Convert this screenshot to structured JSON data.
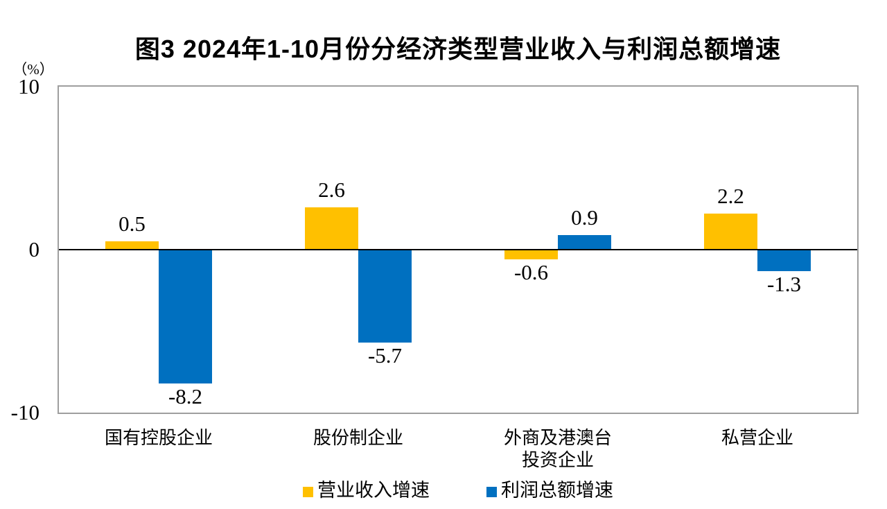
{
  "chart_data": {
    "type": "bar",
    "title": "图3 2024年1-10月份分经济类型营业收入与利润总额增速",
    "ylabel": "（%）",
    "xlabel": "",
    "categories": [
      "国有控股企业",
      "股份制企业",
      "外商及港澳台\n投资企业",
      "私营企业"
    ],
    "series": [
      {
        "name": "营业收入增速",
        "color": "#FFC000",
        "values": [
          0.5,
          2.6,
          -0.6,
          2.2
        ]
      },
      {
        "name": "利润总额增速",
        "color": "#0070C0",
        "values": [
          -8.2,
          -5.7,
          0.9,
          -1.3
        ]
      }
    ],
    "ylim": [
      -10,
      10
    ],
    "yticks": [
      10,
      0,
      -10
    ],
    "grid": false,
    "legend_position": "bottom",
    "value_labels": true,
    "colors": {
      "axis_line": "#000000",
      "plot_border": "#9e9e9e",
      "background": "#ffffff",
      "text": "#000000"
    }
  }
}
